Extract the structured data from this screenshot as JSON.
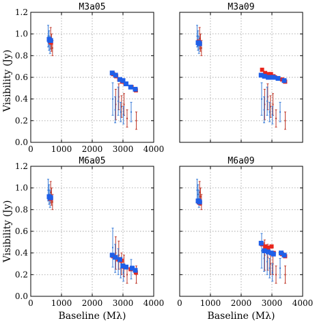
{
  "colors": {
    "model": "#e8261c",
    "observed": "#1f5fe8",
    "errorbar_model": "#c0392b",
    "errorbar_observed": "#3b7dd8"
  },
  "layout": {
    "xlabel": "Baseline (Mλ)",
    "ylabel": "Visibility (Jy)"
  },
  "chart_data": [
    {
      "type": "scatter",
      "title": "M3a05",
      "xlim": [
        0,
        4000
      ],
      "ylim": [
        0.0,
        1.2
      ],
      "xticks": [
        "0",
        "1000",
        "2000",
        "3000",
        "4000"
      ],
      "yticks": [
        "0.0",
        "0.2",
        "0.4",
        "0.6",
        "0.8",
        "1.0",
        "1.2"
      ],
      "grid": true,
      "series": [
        {
          "marker": "square",
          "color": "red",
          "x": [
            620,
            640,
            660,
            2680,
            2780,
            2880,
            2970,
            3080,
            3280,
            3420
          ],
          "y": [
            0.94,
            0.93,
            0.92,
            0.63,
            0.61,
            0.58,
            0.56,
            0.54,
            0.51,
            0.48
          ]
        },
        {
          "marker": "square",
          "color": "blue",
          "x": [
            600,
            620,
            650,
            2650,
            2760,
            2900,
            3000,
            3100,
            3250,
            3400
          ],
          "y": [
            0.95,
            0.94,
            0.94,
            0.64,
            0.62,
            0.58,
            0.57,
            0.54,
            0.51,
            0.49
          ]
        },
        {
          "marker": "errorbar",
          "color": "mixed",
          "x": [
            600,
            615,
            630,
            645,
            660,
            675,
            2700,
            2730,
            2780,
            2830,
            2880,
            2920,
            2960,
            3000,
            3050,
            3100,
            3300,
            3400
          ],
          "y": [
            0.98,
            0.96,
            0.94,
            0.92,
            0.9,
            0.87,
            0.4,
            0.35,
            0.3,
            0.42,
            0.38,
            0.33,
            0.28,
            0.35,
            0.25,
            0.22,
            0.28,
            0.2
          ],
          "err": [
            0.1,
            0.1,
            0.09,
            0.08,
            0.08,
            0.07,
            0.15,
            0.14,
            0.12,
            0.12,
            0.13,
            0.1,
            0.09,
            0.1,
            0.08,
            0.08,
            0.09,
            0.08
          ]
        }
      ]
    },
    {
      "type": "scatter",
      "title": "M3a09",
      "xlim": [
        0,
        4000
      ],
      "ylim": [
        0.0,
        1.2
      ],
      "xticks": [
        "",
        "",
        "",
        "",
        ""
      ],
      "yticks": [
        "",
        "",
        "",
        "",
        "",
        "",
        ""
      ],
      "grid": true,
      "series": [
        {
          "marker": "square",
          "color": "red",
          "x": [
            620,
            640,
            660,
            2680,
            2780,
            2880,
            2970,
            3050,
            3100,
            3330,
            3430
          ],
          "y": [
            0.93,
            0.92,
            0.91,
            0.67,
            0.64,
            0.63,
            0.63,
            0.61,
            0.6,
            0.58,
            0.56
          ]
        },
        {
          "marker": "square",
          "color": "blue",
          "x": [
            600,
            620,
            650,
            2650,
            2760,
            2880,
            2980,
            3050,
            3200,
            3400
          ],
          "y": [
            0.92,
            0.92,
            0.91,
            0.62,
            0.61,
            0.6,
            0.6,
            0.6,
            0.59,
            0.57
          ]
        },
        {
          "marker": "errorbar",
          "color": "mixed",
          "x": [
            600,
            615,
            630,
            645,
            660,
            675,
            2700,
            2730,
            2780,
            2830,
            2880,
            2920,
            2960,
            3000,
            3050,
            3100,
            3300,
            3400
          ],
          "y": [
            0.98,
            0.96,
            0.94,
            0.92,
            0.9,
            0.87,
            0.4,
            0.35,
            0.3,
            0.42,
            0.38,
            0.33,
            0.28,
            0.35,
            0.25,
            0.22,
            0.28,
            0.2
          ],
          "err": [
            0.1,
            0.1,
            0.09,
            0.08,
            0.08,
            0.07,
            0.15,
            0.14,
            0.12,
            0.12,
            0.13,
            0.1,
            0.09,
            0.1,
            0.08,
            0.08,
            0.09,
            0.08
          ]
        }
      ]
    },
    {
      "type": "scatter",
      "title": "M6a05",
      "xlim": [
        0,
        4000
      ],
      "ylim": [
        0.0,
        1.2
      ],
      "xticks": [
        "0",
        "1000",
        "2000",
        "3000",
        "4000"
      ],
      "yticks": [
        "0.0",
        "0.2",
        "0.4",
        "0.6",
        "0.8",
        "1.0",
        "1.2"
      ],
      "grid": true,
      "series": [
        {
          "marker": "square",
          "color": "red",
          "x": [
            620,
            640,
            660,
            2680,
            2760,
            2850,
            2950,
            3050,
            3250,
            3420
          ],
          "y": [
            0.91,
            0.9,
            0.9,
            0.37,
            0.36,
            0.34,
            0.33,
            0.27,
            0.25,
            0.22
          ]
        },
        {
          "marker": "square",
          "color": "blue",
          "x": [
            600,
            620,
            650,
            2650,
            2750,
            2900,
            3000,
            3100,
            3300,
            3400
          ],
          "y": [
            0.92,
            0.91,
            0.91,
            0.38,
            0.36,
            0.34,
            0.28,
            0.27,
            0.26,
            0.24
          ]
        },
        {
          "marker": "errorbar",
          "color": "mixed",
          "x": [
            600,
            615,
            630,
            645,
            660,
            675,
            2700,
            2730,
            2780,
            2830,
            2880,
            2920,
            2960,
            3000,
            3050,
            3100,
            3300,
            3400
          ],
          "y": [
            0.98,
            0.96,
            0.94,
            0.92,
            0.9,
            0.87,
            0.45,
            0.4,
            0.35,
            0.38,
            0.32,
            0.3,
            0.26,
            0.28,
            0.22,
            0.2,
            0.25,
            0.2
          ],
          "err": [
            0.1,
            0.1,
            0.09,
            0.08,
            0.08,
            0.07,
            0.18,
            0.15,
            0.13,
            0.13,
            0.12,
            0.1,
            0.09,
            0.1,
            0.08,
            0.08,
            0.09,
            0.08
          ]
        }
      ]
    },
    {
      "type": "scatter",
      "title": "M6a09",
      "xlim": [
        0,
        4000
      ],
      "ylim": [
        0.0,
        1.2
      ],
      "xticks": [
        "0",
        "1000",
        "2000",
        "3000",
        "4000"
      ],
      "yticks": [
        "",
        "",
        "",
        "",
        "",
        "",
        ""
      ],
      "grid": true,
      "series": [
        {
          "marker": "square",
          "color": "red",
          "x": [
            620,
            640,
            660,
            2680,
            2780,
            2880,
            2990,
            3060,
            3330,
            3430
          ],
          "y": [
            0.87,
            0.87,
            0.86,
            0.48,
            0.46,
            0.45,
            0.46,
            0.4,
            0.39,
            0.37
          ]
        },
        {
          "marker": "square",
          "color": "blue",
          "x": [
            600,
            620,
            650,
            2650,
            2760,
            2880,
            2980,
            3050,
            3300,
            3400
          ],
          "y": [
            0.88,
            0.88,
            0.87,
            0.49,
            0.42,
            0.41,
            0.4,
            0.39,
            0.4,
            0.38
          ]
        },
        {
          "marker": "errorbar",
          "color": "mixed",
          "x": [
            600,
            615,
            630,
            645,
            660,
            675,
            2700,
            2730,
            2780,
            2830,
            2880,
            2920,
            2960,
            3000,
            3050,
            3100,
            3300,
            3400
          ],
          "y": [
            0.98,
            0.96,
            0.94,
            0.92,
            0.9,
            0.87,
            0.42,
            0.38,
            0.35,
            0.36,
            0.32,
            0.3,
            0.26,
            0.3,
            0.22,
            0.2,
            0.26,
            0.2
          ],
          "err": [
            0.1,
            0.1,
            0.09,
            0.08,
            0.08,
            0.07,
            0.16,
            0.14,
            0.12,
            0.12,
            0.12,
            0.1,
            0.09,
            0.1,
            0.08,
            0.08,
            0.09,
            0.08
          ]
        }
      ]
    }
  ]
}
